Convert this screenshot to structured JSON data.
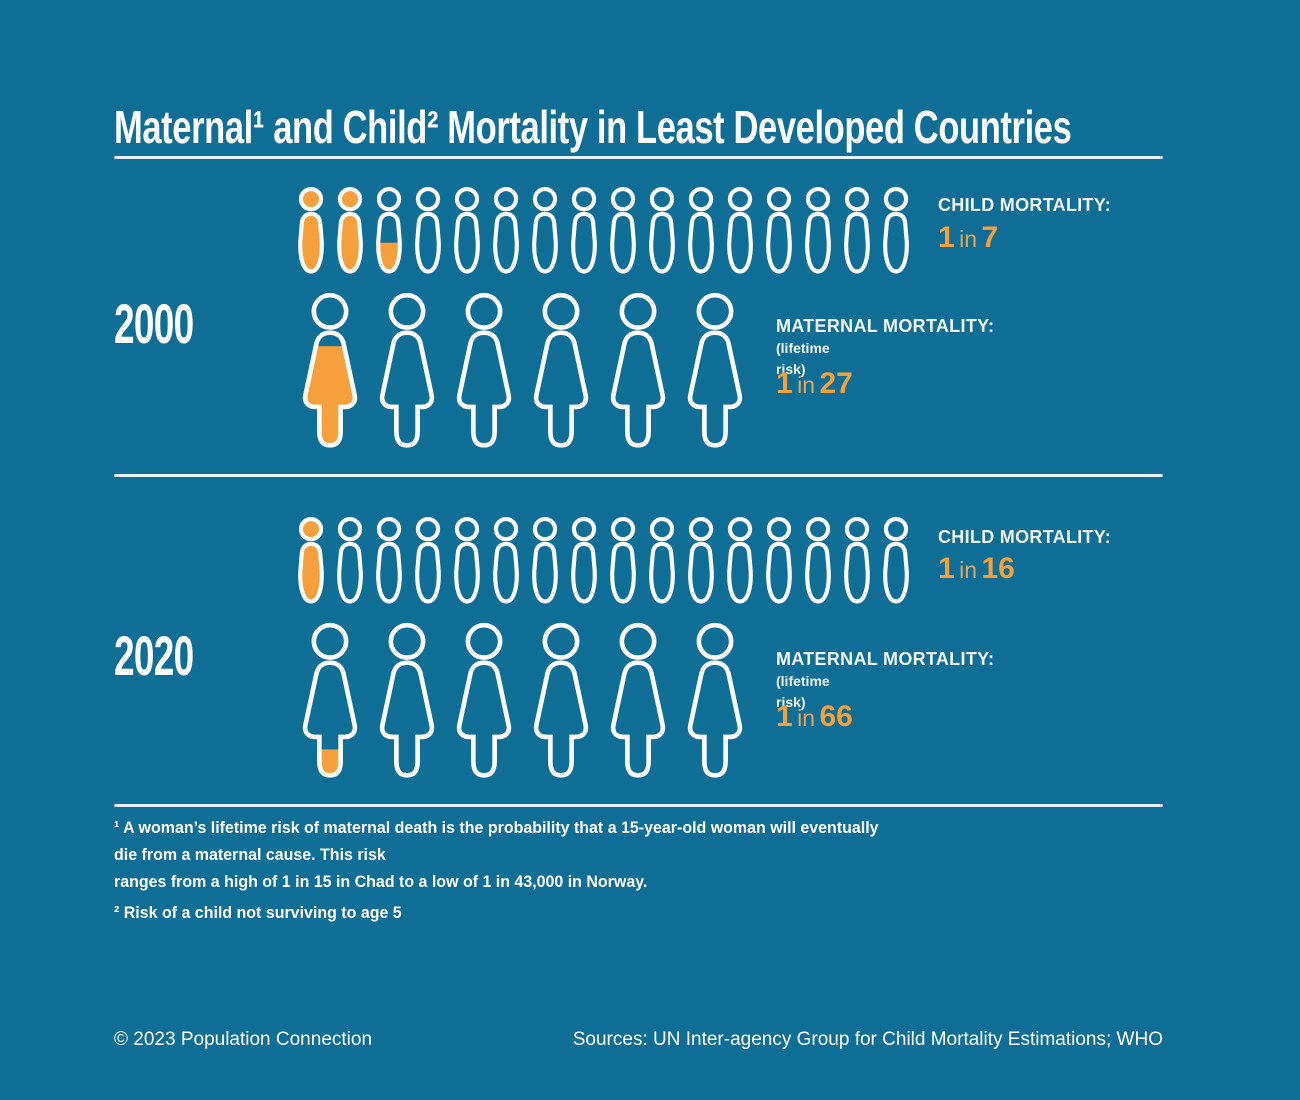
{
  "colors": {
    "background": "#0E6E95",
    "accent_orange": "#F5A03C",
    "icon_outline": "#FFFFFF",
    "text": "#FFFFFF",
    "divider": "#E8F2F6"
  },
  "title": "Maternal¹ and Child² Mortality in Least Developed Countries",
  "sections": [
    {
      "year": "2000",
      "child": {
        "label": "CHILD MORTALITY:",
        "value": {
          "num1": "1",
          "conj": "in",
          "num2": "7"
        },
        "row": {
          "icon": "child",
          "count": 16,
          "fills": [
            {
              "i": 0,
              "type": "full"
            },
            {
              "i": 1,
              "type": "full"
            },
            {
              "i": 2,
              "type": "partial",
              "from": 0.5
            }
          ]
        }
      },
      "maternal": {
        "label": "MATERNAL MORTALITY:",
        "note_line1": "(lifetime",
        "note_line2": "risk)",
        "value": {
          "num1": "1",
          "conj": "in",
          "num2": "27"
        },
        "row": {
          "icon": "woman",
          "count": 6,
          "fills": [
            {
              "i": 0,
              "type": "partial",
              "from": 0.12
            }
          ]
        }
      }
    },
    {
      "year": "2020",
      "child": {
        "label": "CHILD MORTALITY:",
        "value": {
          "num1": "1",
          "conj": "in",
          "num2": "16"
        },
        "row": {
          "icon": "child",
          "count": 16,
          "fills": [
            {
              "i": 0,
              "type": "full"
            }
          ]
        }
      },
      "maternal": {
        "label": "MATERNAL MORTALITY:",
        "note_line1": "(lifetime",
        "note_line2": "risk)",
        "value": {
          "num1": "1",
          "conj": "in",
          "num2": "66"
        },
        "row": {
          "icon": "woman",
          "count": 6,
          "fills": [
            {
              "i": 0,
              "type": "partial",
              "from": 0.77
            }
          ]
        }
      }
    }
  ],
  "footnotes": {
    "note1_lines": [
      "¹ A woman’s lifetime risk of maternal death is the probability that a 15-year-old woman will eventually",
      "die from a maternal cause. This risk",
      "ranges from a high of 1 in 15 in Chad to a low of 1 in 43,000 in Norway."
    ],
    "note2": "² Risk of a child not surviving to age 5"
  },
  "footer": {
    "copyright": "© 2023 Population Connection",
    "sources": "Sources: UN Inter-agency Group for Child Mortality Estimations; WHO"
  },
  "chart_data": {
    "type": "table",
    "title": "Maternal and Child Mortality in Least Developed Countries",
    "categories": [
      "2000",
      "2020"
    ],
    "series": [
      {
        "name": "Child mortality (risk of a child not surviving to age 5)",
        "values": [
          "1 in 7",
          "1 in 16"
        ],
        "rates": [
          0.143,
          0.0625
        ],
        "pictogram": {
          "icon": "child",
          "icons_per_row": 16,
          "filled": [
            2.29,
            1
          ]
        }
      },
      {
        "name": "Maternal mortality (lifetime risk)",
        "values": [
          "1 in 27",
          "1 in 66"
        ],
        "rates": [
          0.037,
          0.0152
        ],
        "pictogram": {
          "icon": "woman",
          "icons_per_row": 6,
          "filled": [
            0.88,
            0.23
          ]
        }
      }
    ],
    "annotations": [
      "Lifetime maternal risk ranges from a high of 1 in 15 in Chad to a low of 1 in 43,000 in Norway"
    ],
    "legend_position": "right-of-rows",
    "accent_color": "#F5A03C"
  }
}
